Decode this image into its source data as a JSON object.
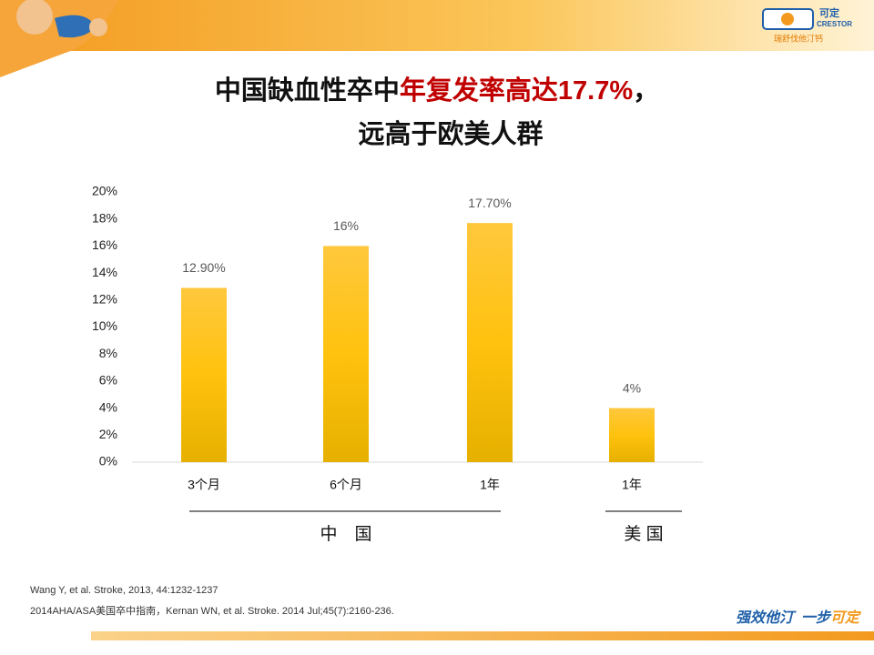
{
  "chart_data": {
    "type": "bar",
    "title_parts": [
      "中国缺血性卒中",
      "年复发率高达17.7%",
      "，"
    ],
    "subtitle": "远高于欧美人群",
    "categories": [
      "3个月",
      "6个月",
      "1年",
      "1年"
    ],
    "values": [
      12.9,
      16,
      17.7,
      4
    ],
    "value_labels": [
      "12.90%",
      "16%",
      "17.70%",
      "4%"
    ],
    "color": "url(#bar)",
    "groups": [
      "中　国",
      "美 国"
    ],
    "ylim": [
      0,
      20
    ],
    "yticks": [
      {
        "value": 0,
        "label": "0%"
      },
      {
        "value": 2,
        "label": "2%"
      },
      {
        "value": 4,
        "label": "4%"
      },
      {
        "value": 6,
        "label": "6%"
      },
      {
        "value": 8,
        "label": "8%"
      },
      {
        "value": 10,
        "label": "10%"
      },
      {
        "value": 12,
        "label": "12%"
      },
      {
        "value": 14,
        "label": "14%"
      },
      {
        "value": 16,
        "label": "16%"
      },
      {
        "value": 18,
        "label": "18%"
      },
      {
        "value": 20,
        "label": "20%"
      }
    ]
  },
  "logo": {
    "name": "可定",
    "brand": "CRESTOR",
    "generic": "瑞舒伐他汀钙"
  },
  "references": [
    "Wang Y,  et al. Stroke, 2013, 44:1232-1237",
    "2014AHA/ASA美国卒中指南，Kernan WN, et al. Stroke. 2014 Jul;45(7):2160-236."
  ],
  "footer": {
    "slogan_part1": "强效他汀",
    "slogan_part2": "一步",
    "slogan_part3": "可定"
  }
}
